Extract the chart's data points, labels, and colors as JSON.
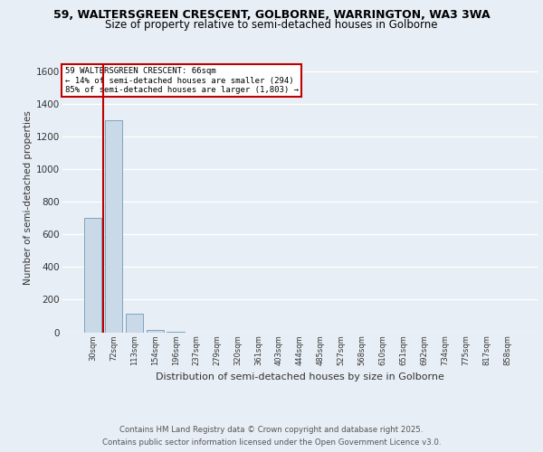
{
  "title_line1": "59, WALTERSGREEN CRESCENT, GOLBORNE, WARRINGTON, WA3 3WA",
  "title_line2": "Size of property relative to semi-detached houses in Golborne",
  "xlabel": "Distribution of semi-detached houses by size in Golborne",
  "ylabel": "Number of semi-detached properties",
  "categories": [
    "30sqm",
    "72sqm",
    "113sqm",
    "154sqm",
    "196sqm",
    "237sqm",
    "279sqm",
    "320sqm",
    "361sqm",
    "403sqm",
    "444sqm",
    "485sqm",
    "527sqm",
    "568sqm",
    "610sqm",
    "651sqm",
    "692sqm",
    "734sqm",
    "775sqm",
    "817sqm",
    "858sqm"
  ],
  "values": [
    700,
    1300,
    113,
    15,
    2,
    0,
    0,
    0,
    0,
    0,
    0,
    0,
    0,
    0,
    0,
    0,
    0,
    0,
    0,
    0,
    0
  ],
  "bar_color": "#c9d9e8",
  "bar_edge_color": "#5a8ab0",
  "highlight_color": "#c00000",
  "annotation_text": "59 WALTERSGREEN CRESCENT: 66sqm\n← 14% of semi-detached houses are smaller (294)\n85% of semi-detached houses are larger (1,803) →",
  "annotation_box_color": "#ffffff",
  "annotation_box_edge": "#c00000",
  "ylim": [
    0,
    1650
  ],
  "yticks": [
    0,
    200,
    400,
    600,
    800,
    1000,
    1200,
    1400,
    1600
  ],
  "footer_line1": "Contains HM Land Registry data © Crown copyright and database right 2025.",
  "footer_line2": "Contains public sector information licensed under the Open Government Licence v3.0.",
  "background_color": "#e8eef5",
  "plot_bg_color": "#e8eef5",
  "grid_color": "#ffffff",
  "title_fontsize": 9,
  "subtitle_fontsize": 8.5
}
